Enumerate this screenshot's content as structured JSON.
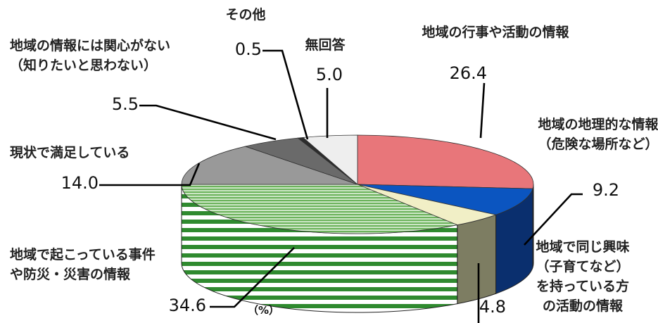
{
  "chart_data": {
    "type": "pie",
    "unit_label": "（%）",
    "slices": [
      {
        "label_lines": [
          "地域の行事や活動の情報"
        ],
        "value": 26.4,
        "value_text": "26.4",
        "color": "#e8767a",
        "side": "#c24e55"
      },
      {
        "label_lines": [
          "地域の地理的な情報",
          "（危険な場所など）"
        ],
        "value": 9.2,
        "value_text": "9.2",
        "color": "#0b55c0",
        "side": "#0a2f6e"
      },
      {
        "label_lines": [
          "地域で同じ興味",
          "（子育てなど）",
          "を持っている方",
          "の活動の情報"
        ],
        "value": 4.8,
        "value_text": "4.8",
        "color": "#f1efc6",
        "side": "#7d7d62"
      },
      {
        "label_lines": [
          "地域で起こっている事件",
          "や防災・災害の情報"
        ],
        "value": 34.6,
        "value_text": "34.6",
        "color": "#64ac55",
        "side": "#3d8f37",
        "pattern": "stripes"
      },
      {
        "label_lines": [
          "現状で満足している"
        ],
        "value": 14.0,
        "value_text": "14.0",
        "color": "#999999",
        "side": "#666666"
      },
      {
        "label_lines": [
          "地域の情報には関心がない",
          "（知りたいと思わない）"
        ],
        "value": 5.5,
        "value_text": "5.5",
        "color": "#6a6a6a",
        "side": "#3e3e3e"
      },
      {
        "label_lines": [
          "その他"
        ],
        "value": 0.5,
        "value_text": "0.5",
        "color": "#2c2c2c",
        "side": "#111111"
      },
      {
        "label_lines": [
          "無回答"
        ],
        "value": 5.0,
        "value_text": "5.0",
        "color": "#eeeeee",
        "side": "#9a9a9a"
      }
    ]
  }
}
